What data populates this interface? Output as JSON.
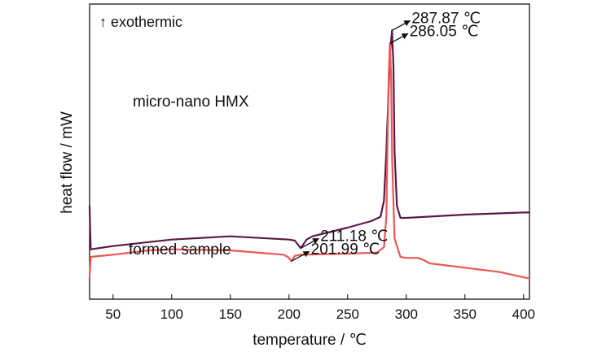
{
  "chart_data": {
    "type": "line",
    "title": "",
    "xlabel": "temperature / ℃",
    "ylabel": "heat flow / mW",
    "xlim": [
      30,
      405
    ],
    "xticks": [
      50,
      100,
      150,
      200,
      250,
      300,
      350,
      400
    ],
    "y_tick_labels": false,
    "legend": "none",
    "grid": false,
    "note": "↑  exothermic",
    "series": [
      {
        "name": "micro-nano HMX",
        "color": "#5a1a48",
        "x": [
          30,
          31,
          50,
          100,
          150,
          200,
          205,
          210,
          215,
          220,
          250,
          270,
          278,
          281,
          283,
          285,
          286,
          287.87,
          289,
          290,
          292,
          295,
          300,
          350,
          400,
          405
        ],
        "y": [
          8.0,
          4.0,
          4.3,
          4.9,
          5.2,
          4.9,
          4.8,
          4.1,
          4.9,
          5.2,
          6.0,
          6.6,
          7.0,
          8.5,
          13.0,
          19.0,
          22.0,
          24.2,
          21.0,
          13.0,
          8.0,
          6.9,
          6.9,
          7.2,
          7.4,
          7.4
        ]
      },
      {
        "name": "formed sample",
        "color": "#ee5555",
        "x": [
          30,
          31,
          50,
          80,
          100,
          150,
          195,
          199,
          201.99,
          205,
          210,
          250,
          275,
          281,
          283,
          284,
          285,
          286.05,
          287,
          288,
          290,
          295,
          300,
          310,
          315,
          320,
          350,
          380,
          405
        ],
        "y": [
          1.5,
          3.3,
          3.5,
          3.9,
          4.0,
          3.9,
          3.5,
          3.3,
          2.9,
          3.4,
          3.5,
          3.6,
          3.7,
          4.2,
          7.0,
          14.0,
          20.0,
          23.0,
          20.0,
          12.0,
          5.0,
          3.3,
          3.2,
          3.2,
          3.0,
          2.7,
          2.3,
          1.9,
          1.3
        ]
      }
    ],
    "annotations": [
      {
        "text": "287.87 ℃",
        "series": 0,
        "x": 287.87
      },
      {
        "text": "211.18 ℃",
        "series": 0,
        "x": 210
      },
      {
        "text": "286.05 ℃",
        "series": 1,
        "x": 286.05
      },
      {
        "text": "201.99 ℃",
        "series": 1,
        "x": 201.99
      }
    ]
  }
}
